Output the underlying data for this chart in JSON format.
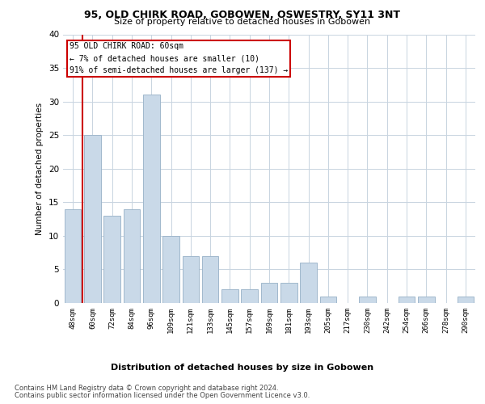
{
  "title1": "95, OLD CHIRK ROAD, GOBOWEN, OSWESTRY, SY11 3NT",
  "title2": "Size of property relative to detached houses in Gobowen",
  "xlabel": "Distribution of detached houses by size in Gobowen",
  "ylabel": "Number of detached properties",
  "categories": [
    "48sqm",
    "60sqm",
    "72sqm",
    "84sqm",
    "96sqm",
    "109sqm",
    "121sqm",
    "133sqm",
    "145sqm",
    "157sqm",
    "169sqm",
    "181sqm",
    "193sqm",
    "205sqm",
    "217sqm",
    "230sqm",
    "242sqm",
    "254sqm",
    "266sqm",
    "278sqm",
    "290sqm"
  ],
  "values": [
    14,
    25,
    13,
    14,
    31,
    10,
    7,
    7,
    2,
    2,
    3,
    3,
    6,
    1,
    0,
    1,
    0,
    1,
    1,
    0,
    1
  ],
  "bar_color": "#c9d9e8",
  "bar_edgecolor": "#a0b8cc",
  "highlight_index": 1,
  "highlight_line_color": "#cc0000",
  "ylim": [
    0,
    40
  ],
  "yticks": [
    0,
    5,
    10,
    15,
    20,
    25,
    30,
    35,
    40
  ],
  "annotation_line1": "95 OLD CHIRK ROAD: 60sqm",
  "annotation_line2": "← 7% of detached houses are smaller (10)",
  "annotation_line3": "91% of semi-detached houses are larger (137) →",
  "annotation_box_color": "#ffffff",
  "annotation_box_edgecolor": "#cc0000",
  "footer1": "Contains HM Land Registry data © Crown copyright and database right 2024.",
  "footer2": "Contains public sector information licensed under the Open Government Licence v3.0.",
  "bg_color": "#ffffff",
  "grid_color": "#c8d4e0"
}
